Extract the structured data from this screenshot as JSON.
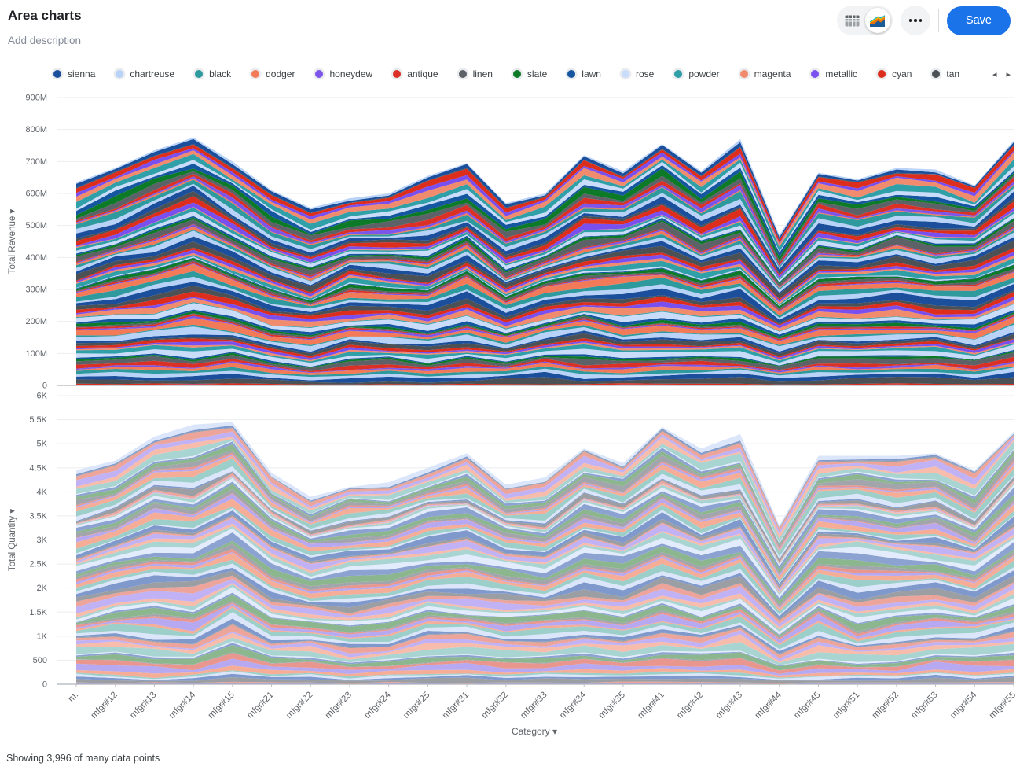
{
  "header": {
    "title": "Area charts",
    "description_placeholder": "Add description",
    "save_label": "Save",
    "more_icon": "ellipsis",
    "view_toggle": {
      "options": [
        "table",
        "chart"
      ],
      "selected": "chart"
    }
  },
  "legend": {
    "prev_icon": "◂",
    "next_icon": "▸",
    "items": [
      {
        "label": "sienna",
        "color": "#1b4f9c"
      },
      {
        "label": "chartreuse",
        "color": "#b8d2f8"
      },
      {
        "label": "black",
        "color": "#2f9a9e"
      },
      {
        "label": "dodger",
        "color": "#f27a58"
      },
      {
        "label": "honeydew",
        "color": "#7e55ea"
      },
      {
        "label": "antique",
        "color": "#da3025"
      },
      {
        "label": "linen",
        "color": "#5d6268"
      },
      {
        "label": "slate",
        "color": "#0c7a26"
      },
      {
        "label": "lawn",
        "color": "#14569f"
      },
      {
        "label": "rose",
        "color": "#c9dcfa"
      },
      {
        "label": "powder",
        "color": "#2f9fa8"
      },
      {
        "label": "magenta",
        "color": "#f18b6e"
      },
      {
        "label": "metallic",
        "color": "#7a4ff0"
      },
      {
        "label": "cyan",
        "color": "#dd2d1c"
      },
      {
        "label": "tan",
        "color": "#4c5156"
      }
    ]
  },
  "chart_data": [
    {
      "type": "area",
      "stacked": true,
      "y_axis_title": "Total Revenue",
      "axis_dropdown_arrow": "▾",
      "categories": [
        "m.",
        "mfgr#12",
        "mfgr#13",
        "mfgr#14",
        "mfgr#15",
        "mfgr#21",
        "mfgr#22",
        "mfgr#23",
        "mfgr#24",
        "mfgr#25",
        "mfgr#31",
        "mfgr#32",
        "mfgr#33",
        "mfgr#34",
        "mfgr#35",
        "mfgr#41",
        "mfgr#42",
        "mfgr#43",
        "mfgr#44",
        "mfgr#45",
        "mfgr#51",
        "mfgr#52",
        "mfgr#53",
        "mfgr#54",
        "mfgr#55"
      ],
      "totals": [
        635,
        680,
        735,
        775,
        700,
        610,
        555,
        585,
        600,
        655,
        695,
        570,
        600,
        720,
        670,
        755,
        670,
        770,
        470,
        665,
        645,
        680,
        675,
        625,
        765
      ],
      "totals_unit": "M (millions)",
      "ymax": 900,
      "y_ticks": [
        {
          "v": 0,
          "label": "0"
        },
        {
          "v": 100,
          "label": "100M"
        },
        {
          "v": 200,
          "label": "200M"
        },
        {
          "v": 300,
          "label": "300M"
        },
        {
          "v": 400,
          "label": "400M"
        },
        {
          "v": 500,
          "label": "500M"
        },
        {
          "v": 600,
          "label": "600M"
        },
        {
          "v": 700,
          "label": "700M"
        },
        {
          "v": 800,
          "label": "800M"
        },
        {
          "v": 900,
          "label": "900M"
        }
      ],
      "series_count": 80,
      "palette_start": 12,
      "palette": [
        "#1b4f9c",
        "#b8d2f8",
        "#2f9a9e",
        "#f27a58",
        "#7e55ea",
        "#da3025",
        "#5d6268",
        "#0c7a26",
        "#14569f",
        "#c9dcfa",
        "#2f9fa8",
        "#f18b6e",
        "#7a4ff0",
        "#dd2d1c",
        "#4c5156"
      ],
      "seed": 7,
      "draw_x_labels": false,
      "legend_position": "top",
      "grid": true
    },
    {
      "type": "area",
      "stacked": true,
      "y_axis_title": "Total Quantity",
      "axis_dropdown_arrow": "▾",
      "categories": [
        "m.",
        "mfgr#12",
        "mfgr#13",
        "mfgr#14",
        "mfgr#15",
        "mfgr#21",
        "mfgr#22",
        "mfgr#23",
        "mfgr#24",
        "mfgr#25",
        "mfgr#31",
        "mfgr#32",
        "mfgr#33",
        "mfgr#34",
        "mfgr#35",
        "mfgr#41",
        "mfgr#42",
        "mfgr#43",
        "mfgr#44",
        "mfgr#45",
        "mfgr#51",
        "mfgr#52",
        "mfgr#53",
        "mfgr#54",
        "mfgr#55"
      ],
      "totals": [
        4450,
        4650,
        5150,
        5400,
        5450,
        4400,
        3900,
        4100,
        4200,
        4500,
        4800,
        4150,
        4300,
        4900,
        4600,
        5350,
        4900,
        5200,
        3300,
        4750,
        4750,
        4750,
        4800,
        4450,
        5250
      ],
      "totals_unit": "units",
      "ymax": 6000,
      "y_ticks": [
        {
          "v": 0,
          "label": "0"
        },
        {
          "v": 500,
          "label": "500"
        },
        {
          "v": 1000,
          "label": "1K"
        },
        {
          "v": 1500,
          "label": "1.5K"
        },
        {
          "v": 2000,
          "label": "2K"
        },
        {
          "v": 2500,
          "label": "2.5K"
        },
        {
          "v": 3000,
          "label": "3K"
        },
        {
          "v": 3500,
          "label": "3.5K"
        },
        {
          "v": 4000,
          "label": "4K"
        },
        {
          "v": 4500,
          "label": "4.5K"
        },
        {
          "v": 5000,
          "label": "5K"
        },
        {
          "v": 5500,
          "label": "5.5K"
        },
        {
          "v": 6000,
          "label": "6K"
        }
      ],
      "series_count": 80,
      "palette_start": 12,
      "palette": [
        "#8099cc",
        "#dbe6fb",
        "#9ccfc9",
        "#f5ad97",
        "#b7a9f1",
        "#e9968f",
        "#a2a5ab",
        "#8cb78e",
        "#8ca3d2",
        "#e3ecfc",
        "#a8d4d2",
        "#f7bcab",
        "#c0b2f4",
        "#eda49b",
        "#9b9fa4"
      ],
      "seed": 23,
      "draw_x_labels": true,
      "legend_position": "top",
      "grid": true
    }
  ],
  "x_axis": {
    "title": "Category",
    "dropdown_arrow": "▾"
  },
  "footer": {
    "status": "Showing 3,996 of many data points"
  }
}
